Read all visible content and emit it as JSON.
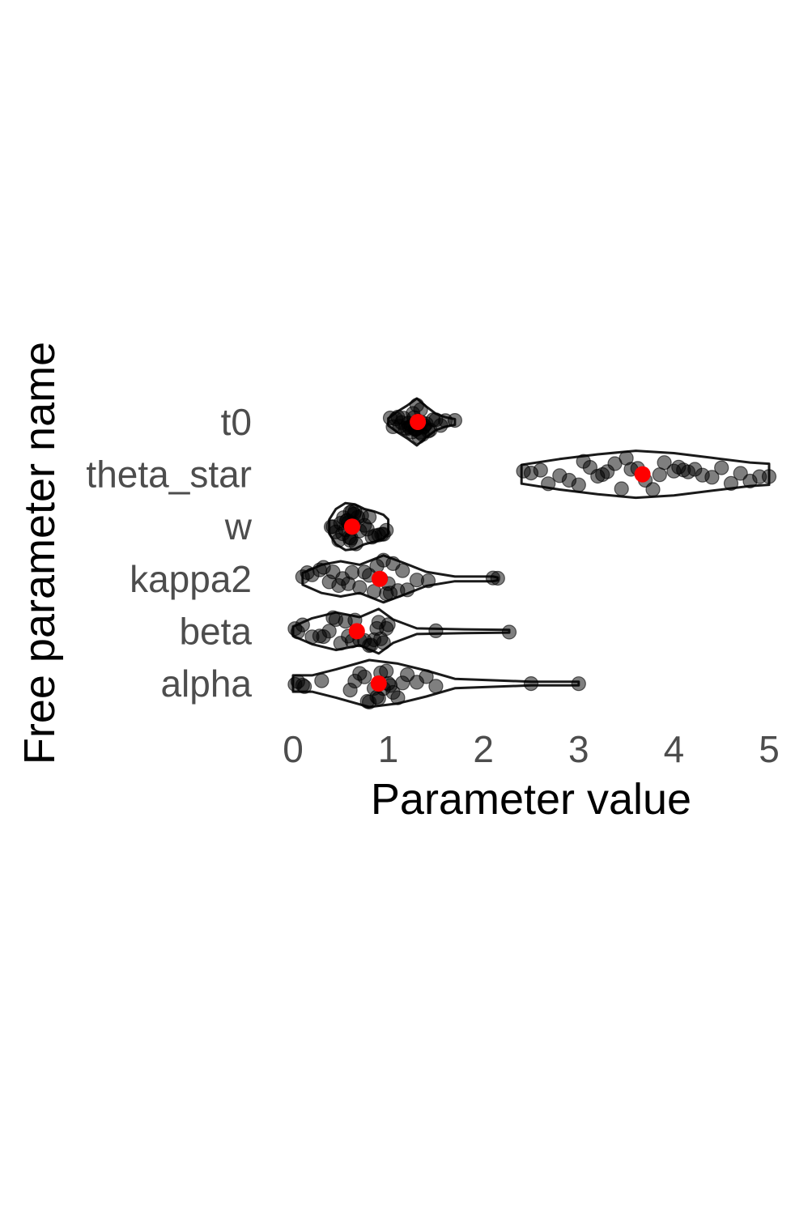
{
  "chart_data": {
    "type": "violin",
    "orientation": "horizontal",
    "xlabel": "Parameter value",
    "ylabel": "Free parameter name",
    "xlim": [
      0,
      5
    ],
    "x_ticks": [
      "0",
      "1",
      "2",
      "3",
      "4",
      "5"
    ],
    "grid": false,
    "legend": "none",
    "colors": {
      "violin_outline": "#1a1a1a",
      "points": "#000000",
      "mean_marker": "#ff0000",
      "tick_text": "#4d4d4d"
    },
    "categories": [
      "t0",
      "theta_star",
      "w",
      "kappa2",
      "beta",
      "alpha"
    ],
    "series": [
      {
        "category": "t0",
        "mean": 1.31,
        "values": [
          1.02,
          1.05,
          1.08,
          1.1,
          1.12,
          1.14,
          1.16,
          1.18,
          1.2,
          1.21,
          1.22,
          1.24,
          1.25,
          1.26,
          1.27,
          1.28,
          1.29,
          1.3,
          1.3,
          1.31,
          1.32,
          1.33,
          1.34,
          1.35,
          1.36,
          1.37,
          1.38,
          1.4,
          1.42,
          1.44,
          1.47,
          1.5,
          1.55,
          1.6,
          1.7
        ],
        "density": [
          [
            1.0,
            0.15
          ],
          [
            1.1,
            0.45
          ],
          [
            1.2,
            0.7
          ],
          [
            1.3,
            1.0
          ],
          [
            1.4,
            0.65
          ],
          [
            1.5,
            0.35
          ],
          [
            1.6,
            0.2
          ],
          [
            1.7,
            0.12
          ]
        ]
      },
      {
        "category": "theta_star",
        "mean": 3.67,
        "values": [
          2.42,
          2.5,
          2.6,
          2.68,
          2.8,
          2.9,
          3.0,
          3.05,
          3.12,
          3.2,
          3.25,
          3.3,
          3.38,
          3.45,
          3.5,
          3.55,
          3.62,
          3.7,
          3.78,
          3.85,
          3.9,
          4.0,
          4.05,
          4.1,
          4.15,
          4.22,
          4.3,
          4.4,
          4.5,
          4.6,
          4.7,
          4.8,
          4.9,
          5.0
        ],
        "density": [
          [
            2.4,
            0.4
          ],
          [
            2.8,
            0.65
          ],
          [
            3.2,
            0.85
          ],
          [
            3.6,
            1.0
          ],
          [
            4.0,
            0.9
          ],
          [
            4.4,
            0.7
          ],
          [
            4.8,
            0.5
          ],
          [
            5.0,
            0.45
          ]
        ]
      },
      {
        "category": "w",
        "mean": 0.62,
        "values": [
          0.4,
          0.42,
          0.45,
          0.48,
          0.5,
          0.52,
          0.53,
          0.55,
          0.56,
          0.57,
          0.58,
          0.59,
          0.6,
          0.6,
          0.61,
          0.62,
          0.63,
          0.64,
          0.65,
          0.66,
          0.68,
          0.7,
          0.72,
          0.75,
          0.78,
          0.8,
          0.83,
          0.86,
          0.9,
          0.93,
          0.95,
          0.98
        ],
        "density": [
          [
            0.38,
            0.3
          ],
          [
            0.45,
            0.75
          ],
          [
            0.55,
            1.0
          ],
          [
            0.65,
            0.95
          ],
          [
            0.75,
            0.75
          ],
          [
            0.85,
            0.65
          ],
          [
            0.95,
            0.5
          ],
          [
            1.0,
            0.3
          ]
        ]
      },
      {
        "category": "kappa2",
        "mean": 0.91,
        "values": [
          0.1,
          0.15,
          0.2,
          0.28,
          0.32,
          0.38,
          0.42,
          0.48,
          0.52,
          0.58,
          0.62,
          0.7,
          0.75,
          0.8,
          0.85,
          0.88,
          0.92,
          0.95,
          0.98,
          1.0,
          1.02,
          1.05,
          1.1,
          1.15,
          1.2,
          1.3,
          1.42,
          2.1,
          2.15
        ],
        "density": [
          [
            0.1,
            0.25
          ],
          [
            0.3,
            0.6
          ],
          [
            0.5,
            0.75
          ],
          [
            0.7,
            0.6
          ],
          [
            0.95,
            1.0
          ],
          [
            1.15,
            0.7
          ],
          [
            1.4,
            0.3
          ],
          [
            1.7,
            0.1
          ],
          [
            2.1,
            0.1
          ],
          [
            2.15,
            0.06
          ]
        ]
      },
      {
        "category": "beta",
        "mean": 0.67,
        "values": [
          0.02,
          0.05,
          0.1,
          0.2,
          0.28,
          0.32,
          0.38,
          0.42,
          0.45,
          0.5,
          0.55,
          0.58,
          0.62,
          0.65,
          0.7,
          0.75,
          0.8,
          0.82,
          0.85,
          0.88,
          0.9,
          0.92,
          0.95,
          0.98,
          1.0,
          1.5,
          2.27
        ],
        "density": [
          [
            0.0,
            0.2
          ],
          [
            0.2,
            0.55
          ],
          [
            0.45,
            0.8
          ],
          [
            0.7,
            0.6
          ],
          [
            0.9,
            0.95
          ],
          [
            1.05,
            0.5
          ],
          [
            1.3,
            0.12
          ],
          [
            1.8,
            0.08
          ],
          [
            2.27,
            0.06
          ]
        ]
      },
      {
        "category": "alpha",
        "mean": 0.9,
        "values": [
          0.02,
          0.05,
          0.1,
          0.12,
          0.3,
          0.6,
          0.65,
          0.7,
          0.75,
          0.78,
          0.8,
          0.85,
          0.88,
          0.9,
          0.92,
          0.95,
          0.98,
          1.0,
          1.02,
          1.05,
          1.1,
          1.15,
          1.2,
          1.3,
          1.4,
          1.5,
          2.5,
          3.0
        ],
        "density": [
          [
            0.0,
            0.35
          ],
          [
            0.2,
            0.35
          ],
          [
            0.45,
            0.6
          ],
          [
            0.8,
            1.0
          ],
          [
            1.1,
            0.85
          ],
          [
            1.4,
            0.55
          ],
          [
            1.7,
            0.2
          ],
          [
            2.5,
            0.08
          ],
          [
            3.0,
            0.08
          ]
        ]
      }
    ]
  }
}
